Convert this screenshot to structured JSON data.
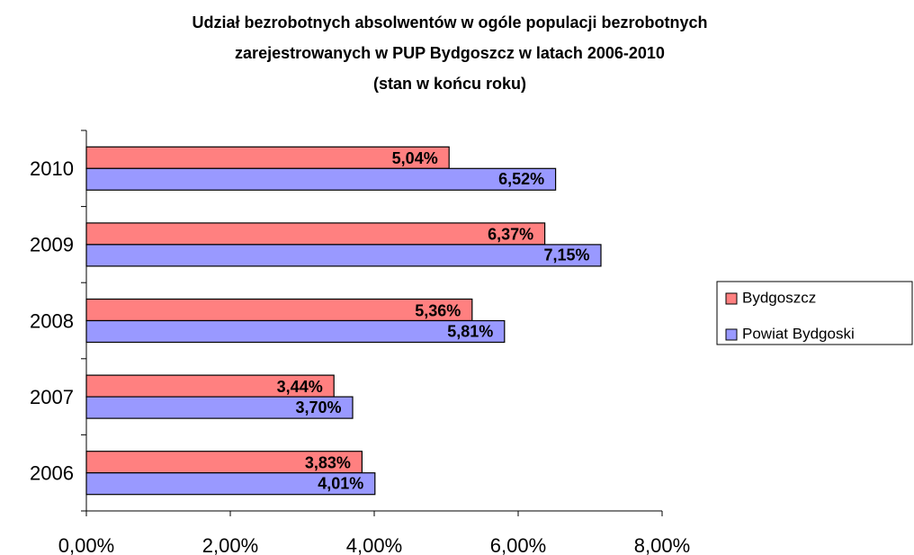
{
  "chart_data": {
    "type": "hbar",
    "title": [
      "Udział bezrobotnych absolwentów w ogóle populacji bezrobotnych",
      "zarejestrowanych w PUP Bydgoszcz w latach 2006-2010",
      "(stan w końcu roku)"
    ],
    "categories": [
      "2006",
      "2007",
      "2008",
      "2009",
      "2010"
    ],
    "series": [
      {
        "name": "Bydgoszcz",
        "color": "#ff8080",
        "values": [
          3.83,
          3.44,
          5.36,
          6.37,
          5.04
        ],
        "value_labels": [
          "3,83%",
          "3,44%",
          "5,36%",
          "6,37%",
          "5,04%"
        ]
      },
      {
        "name": "Powiat Bydgoski",
        "color": "#9999ff",
        "values": [
          4.01,
          3.7,
          5.81,
          7.15,
          6.52
        ],
        "value_labels": [
          "4,01%",
          "3,70%",
          "5,81%",
          "7,15%",
          "6,52%"
        ]
      }
    ],
    "xlim": [
      0,
      8
    ],
    "xticks": [
      {
        "value": 0,
        "label": "0,00%"
      },
      {
        "value": 2,
        "label": "2,00%"
      },
      {
        "value": 4,
        "label": "4,00%"
      },
      {
        "value": 6,
        "label": "6,00%"
      },
      {
        "value": 8,
        "label": "8,00%"
      }
    ],
    "legend": "right"
  }
}
